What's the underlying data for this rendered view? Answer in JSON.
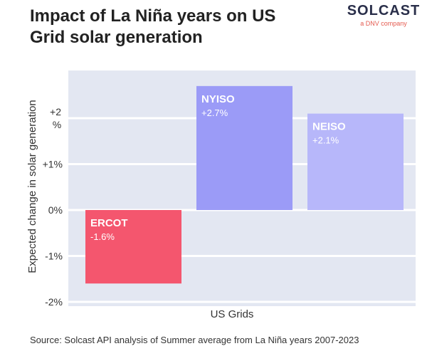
{
  "header": {
    "title": "Impact of La Niña years on US Grid solar generation"
  },
  "logo": {
    "name": "SOLCAST",
    "tagline": "a DNV company",
    "accent_color": "#e45a4f"
  },
  "footer": {
    "source": "Source: Solcast API analysis of Summer average from La Niña years 2007-2023"
  },
  "chart_data": {
    "type": "bar",
    "categories": [
      "ERCOT",
      "NYISO",
      "NEISO"
    ],
    "values": [
      -1.6,
      2.7,
      2.1
    ],
    "value_labels": [
      "-1.6%",
      "+2.7%",
      "+2.1%"
    ],
    "colors": [
      "#f4566e",
      "#9b9bf7",
      "#b7b7fa"
    ],
    "title": "Impact of La Niña years on US Grid solar generation",
    "xlabel": "US Grids",
    "ylabel": "Expected change in solar generation",
    "ylim": [
      -2,
      3
    ],
    "yticks": [
      {
        "value": 2,
        "line1": "+2",
        "line2": "%"
      },
      {
        "value": 1,
        "line1": "+1%"
      },
      {
        "value": 0,
        "line1": "0%"
      },
      {
        "value": -1,
        "line1": "-1%"
      },
      {
        "value": -2,
        "line1": "-2%"
      }
    ],
    "grid": true,
    "background_color": "#e3e7f2"
  }
}
